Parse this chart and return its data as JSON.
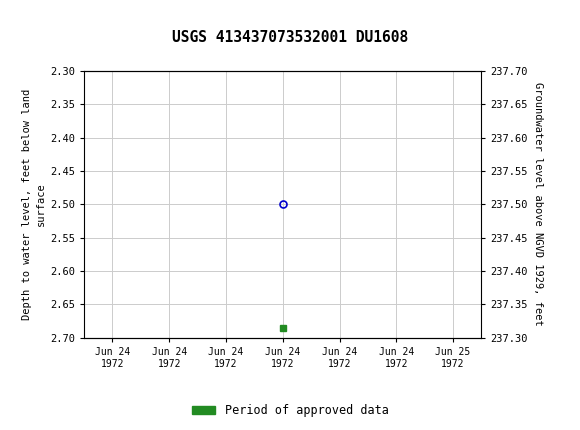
{
  "title": "USGS 413437073532001 DU1608",
  "left_ylabel_lines": [
    "Depth to water level, feet below land",
    "surface"
  ],
  "right_ylabel": "Groundwater level above NGVD 1929, feet",
  "ylim_left": [
    2.3,
    2.7
  ],
  "ylim_right": [
    237.3,
    237.7
  ],
  "left_yticks": [
    2.3,
    2.35,
    2.4,
    2.45,
    2.5,
    2.55,
    2.6,
    2.65,
    2.7
  ],
  "right_yticks": [
    237.7,
    237.65,
    237.6,
    237.55,
    237.5,
    237.45,
    237.4,
    237.35,
    237.3
  ],
  "right_ytick_labels": [
    "237.70",
    "237.65",
    "237.60",
    "237.55",
    "237.50",
    "237.45",
    "237.40",
    "237.35",
    "237.30"
  ],
  "xtick_positions": [
    0,
    1,
    2,
    3,
    4,
    5,
    6
  ],
  "xtick_labels": [
    "Jun 24\n1972",
    "Jun 24\n1972",
    "Jun 24\n1972",
    "Jun 24\n1972",
    "Jun 24\n1972",
    "Jun 24\n1972",
    "Jun 25\n1972"
  ],
  "data_point_x": 3.0,
  "data_point_y": 2.5,
  "data_point_color": "#0000cc",
  "green_marker_x": 3.0,
  "green_marker_y": 2.685,
  "green_color": "#228B22",
  "header_bg_color": "#1b6b3a",
  "background_color": "#ffffff",
  "legend_label": "Period of approved data",
  "grid_color": "#cccccc",
  "border_color": "#000000",
  "tick_label_fontsize": 7.5,
  "title_fontsize": 10.5,
  "ylabel_fontsize": 7.5,
  "legend_fontsize": 8.5
}
